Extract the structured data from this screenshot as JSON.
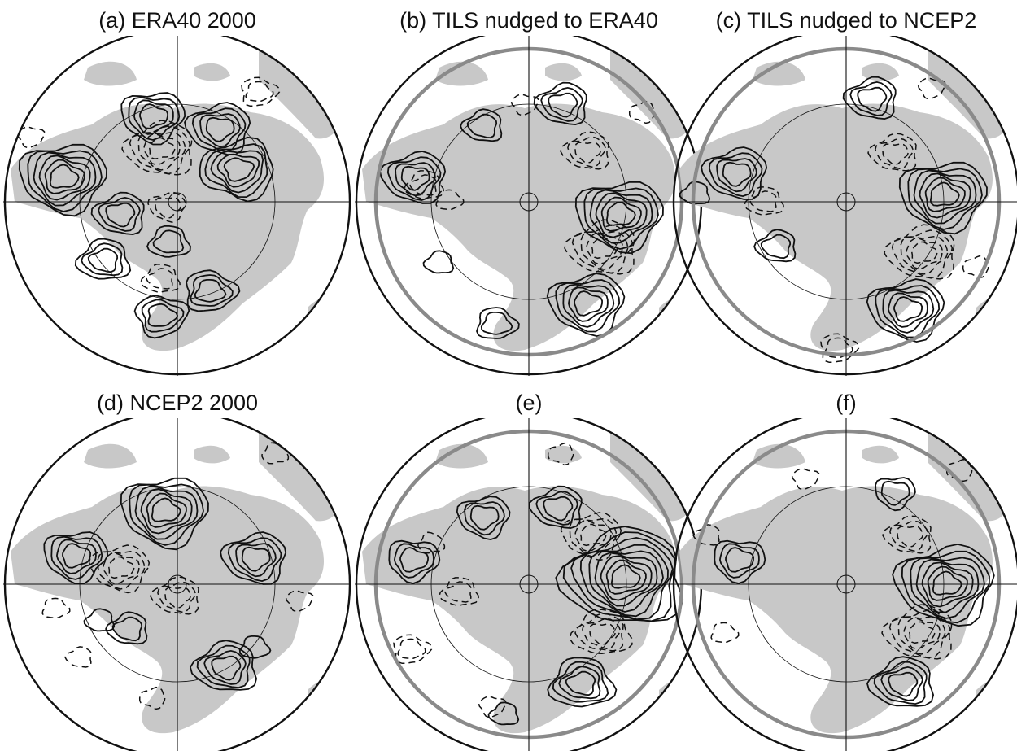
{
  "figure": {
    "panels": [
      {
        "id": "a",
        "title": "(a) ERA40 2000",
        "center": [
          218,
          248
        ],
        "has_domain_ring": false,
        "positive_centers": [
          [
            -140,
            -30,
            6
          ],
          [
            -30,
            -105,
            4
          ],
          [
            52,
            -90,
            4
          ],
          [
            -70,
            15,
            3
          ],
          [
            -90,
            72,
            3
          ],
          [
            -10,
            50,
            2
          ],
          [
            40,
            110,
            3
          ],
          [
            -20,
            140,
            3
          ],
          [
            75,
            -40,
            5
          ]
        ],
        "negative_centers": [
          [
            -20,
            -65,
            5
          ],
          [
            -12,
            6,
            2
          ],
          [
            -20,
            95,
            2
          ],
          [
            100,
            -135,
            2
          ],
          [
            -180,
            -80,
            1
          ]
        ]
      },
      {
        "id": "b",
        "title": "(b) TILS nudged to ERA40",
        "center": [
          650,
          248
        ],
        "has_domain_ring": true,
        "positive_centers": [
          [
            112,
            16,
            6
          ],
          [
            72,
            125,
            5
          ],
          [
            -140,
            -30,
            4
          ],
          [
            42,
            -120,
            3
          ],
          [
            -56,
            -93,
            2
          ],
          [
            -110,
            75,
            1
          ],
          [
            -40,
            150,
            2
          ]
        ],
        "negative_centers": [
          [
            92,
            57,
            5
          ],
          [
            72,
            -62,
            3
          ],
          [
            -128,
            -20,
            2
          ],
          [
            -98,
            -2,
            1
          ],
          [
            -5,
            -120,
            1
          ],
          [
            140,
            -110,
            1
          ]
        ]
      },
      {
        "id": "c",
        "title": "(c) TILS nudged to NCEP2",
        "center": [
          1040,
          248
        ],
        "has_domain_ring": true,
        "positive_centers": [
          [
            120,
            -8,
            6
          ],
          [
            75,
            132,
            5
          ],
          [
            -135,
            -35,
            4
          ],
          [
            32,
            -127,
            3
          ],
          [
            -85,
            55,
            2
          ],
          [
            -185,
            -10,
            1
          ]
        ],
        "negative_centers": [
          [
            95,
            63,
            5
          ],
          [
            60,
            -60,
            3
          ],
          [
            -100,
            0,
            2
          ],
          [
            -10,
            180,
            2
          ],
          [
            105,
            -140,
            1
          ],
          [
            160,
            80,
            1
          ]
        ]
      },
      {
        "id": "d",
        "title": "(d) NCEP2 2000",
        "center": [
          218,
          718
        ],
        "has_domain_ring": false,
        "positive_centers": [
          [
            -15,
            -90,
            6
          ],
          [
            -125,
            -35,
            4
          ],
          [
            96,
            -32,
            4
          ],
          [
            60,
            102,
            4
          ],
          [
            -60,
            55,
            2
          ],
          [
            -95,
            45,
            1
          ],
          [
            95,
            78,
            1
          ]
        ],
        "negative_centers": [
          [
            -70,
            -20,
            4
          ],
          [
            0,
            15,
            3
          ],
          [
            -120,
            90,
            1
          ],
          [
            -150,
            30,
            1
          ],
          [
            150,
            20,
            1
          ],
          [
            -30,
            140,
            1
          ],
          [
            120,
            -160,
            1
          ]
        ]
      },
      {
        "id": "e",
        "title": "(e)",
        "center": [
          650,
          718
        ],
        "has_domain_ring": true,
        "positive_centers": [
          [
            118,
            -8,
            9
          ],
          [
            -142,
            -30,
            3
          ],
          [
            -55,
            -83,
            3
          ],
          [
            36,
            -94,
            3
          ],
          [
            65,
            122,
            4
          ],
          [
            -30,
            160,
            1
          ]
        ],
        "negative_centers": [
          [
            78,
            -60,
            4
          ],
          [
            90,
            60,
            4
          ],
          [
            -85,
            10,
            2
          ],
          [
            -145,
            80,
            2
          ],
          [
            -45,
            150,
            1
          ],
          [
            40,
            -160,
            1
          ],
          [
            -120,
            -50,
            1
          ]
        ]
      },
      {
        "id": "f",
        "title": "(f)",
        "center": [
          1040,
          718
        ],
        "has_domain_ring": true,
        "positive_centers": [
          [
            123,
            0,
            7
          ],
          [
            -132,
            -30,
            3
          ],
          [
            60,
            -113,
            2
          ],
          [
            70,
            122,
            4
          ]
        ],
        "negative_centers": [
          [
            92,
            60,
            5
          ],
          [
            78,
            -60,
            3
          ],
          [
            -170,
            -60,
            1
          ],
          [
            -150,
            60,
            1
          ],
          [
            -50,
            -130,
            1
          ],
          [
            140,
            -140,
            1
          ]
        ]
      }
    ]
  }
}
